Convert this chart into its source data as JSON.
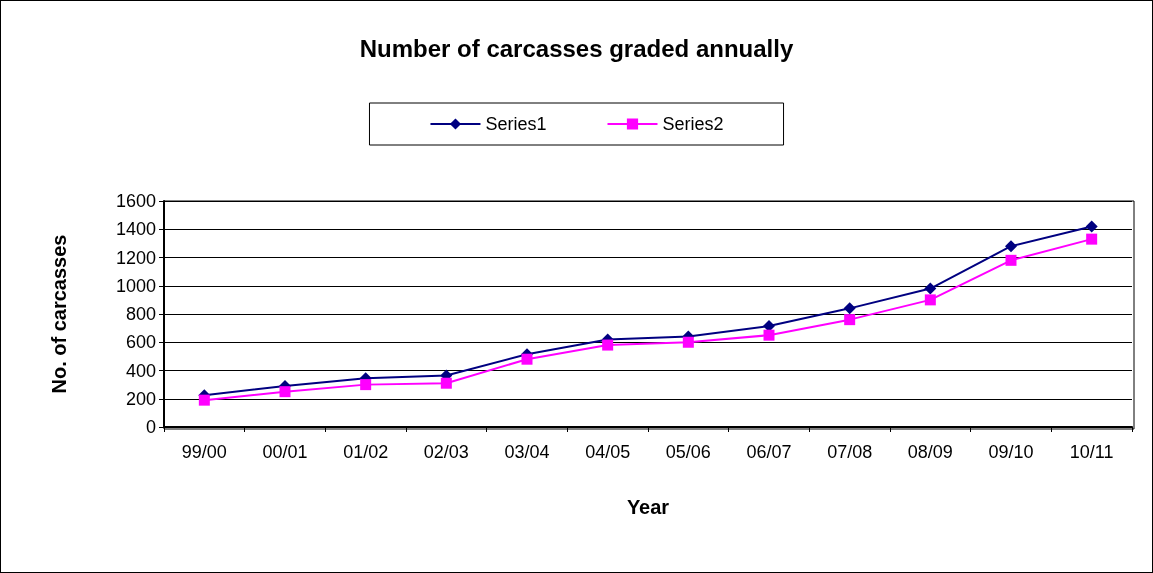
{
  "chart_data": {
    "type": "line",
    "title": "Number of carcasses graded annually",
    "xlabel": "Year",
    "ylabel": "No. of carcasses",
    "categories": [
      "99/00",
      "00/01",
      "01/02",
      "02/03",
      "03/04",
      "04/05",
      "05/06",
      "06/07",
      "07/08",
      "08/09",
      "09/10",
      "10/11"
    ],
    "series": [
      {
        "name": "Series1",
        "color": "#000080",
        "marker": "diamond",
        "values": [
          225,
          290,
          345,
          365,
          515,
          620,
          640,
          715,
          840,
          980,
          1280,
          1420
        ]
      },
      {
        "name": "Series2",
        "color": "#ff00ff",
        "marker": "square",
        "values": [
          190,
          250,
          300,
          310,
          480,
          580,
          600,
          650,
          760,
          900,
          1180,
          1330
        ]
      }
    ],
    "ylim": [
      0,
      1600
    ],
    "yticks": [
      0,
      200,
      400,
      600,
      800,
      1000,
      1200,
      1400,
      1600
    ],
    "grid": "y",
    "legend": "top",
    "line_style": "solid"
  }
}
